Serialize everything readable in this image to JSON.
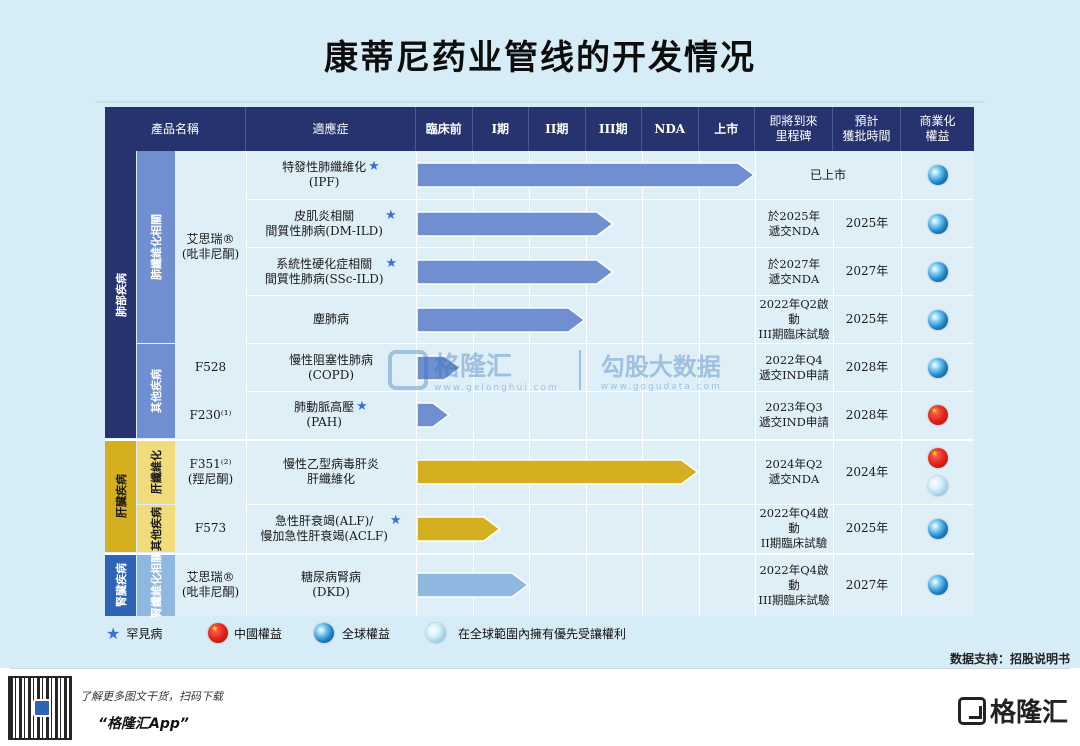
{
  "title": "康蒂尼药业管线的开发情况",
  "headers": {
    "product": "產品名稱",
    "indication": "適應症",
    "stages": [
      "臨床前",
      "I期",
      "II期",
      "III期",
      "NDA",
      "上市"
    ],
    "milestone": "即將到來\n里程碑",
    "approval": "預計\n獲批時間",
    "rights": "商業化\n權益"
  },
  "groups": {
    "lung": "肺部疾病",
    "lung_fibrosis": "肺纖維化相關",
    "lung_other": "其他疾病",
    "liver": "肝臟疾病",
    "liver_fibrosis": "肝纖維化",
    "liver_other": "其他疾病",
    "kidney": "腎臟疾病",
    "kidney_fibrosis": "腎纖維化相關"
  },
  "products": {
    "p1": "艾思瑞®\n(吡非尼酮)",
    "p2": "F528",
    "p3": "F230⁽¹⁾",
    "p4": "F351⁽²⁾\n(羥尼酮)",
    "p5": "F573",
    "p6": "艾思瑞®\n(吡非尼酮)"
  },
  "chart_data": {
    "type": "table",
    "stages": [
      "臨床前",
      "I期",
      "II期",
      "III期",
      "NDA",
      "上市"
    ],
    "rows": [
      {
        "indication": "特發性肺纖維化\n(IPF)",
        "rare": true,
        "progress": 6.0,
        "color": "#6f8fd0",
        "milestone": "已上市",
        "approval": "",
        "rights": [
          "global"
        ]
      },
      {
        "indication": "皮肌炎相關\n間質性肺病(DM-ILD)",
        "rare": true,
        "progress": 3.5,
        "color": "#6f8fd0",
        "milestone": "於2025年\n遞交NDA",
        "approval": "2025年",
        "rights": [
          "global"
        ]
      },
      {
        "indication": "系統性硬化症相關\n間質性肺病(SSc-ILD)",
        "rare": true,
        "progress": 3.5,
        "color": "#6f8fd0",
        "milestone": "於2027年\n遞交NDA",
        "approval": "2027年",
        "rights": [
          "global"
        ]
      },
      {
        "indication": "塵肺病",
        "rare": false,
        "progress": 3.0,
        "color": "#6f8fd0",
        "milestone": "2022年Q2啟動\nIII期臨床試驗",
        "approval": "2025年",
        "rights": [
          "global"
        ]
      },
      {
        "indication": "慢性阻塞性肺病\n(COPD)",
        "rare": false,
        "progress": 0.8,
        "color": "#6f8fd0",
        "milestone": "2022年Q4\n遞交IND申請",
        "approval": "2028年",
        "rights": [
          "global"
        ]
      },
      {
        "indication": "肺動脈高壓\n(PAH)",
        "rare": true,
        "progress": 0.6,
        "color": "#6f8fd0",
        "milestone": "2023年Q3\n遞交IND申請",
        "approval": "2028年",
        "rights": [
          "china"
        ]
      },
      {
        "indication": "慢性乙型病毒肝炎\n肝纖維化",
        "rare": false,
        "progress": 5.0,
        "color": "#d4b020",
        "milestone": "2024年Q2\n遞交NDA",
        "approval": "2024年",
        "rights": [
          "china",
          "priority"
        ]
      },
      {
        "indication": "急性肝衰竭(ALF)/\n慢加急性肝衰竭(ACLF)",
        "rare": true,
        "progress": 1.5,
        "color": "#d4b020",
        "milestone": "2022年Q4啟動\nII期臨床試驗",
        "approval": "2025年",
        "rights": [
          "global"
        ]
      },
      {
        "indication": "糖尿病腎病\n(DKD)",
        "rare": false,
        "progress": 2.0,
        "color": "#8fb8e0",
        "milestone": "2022年Q4啟動\nIII期臨床試驗",
        "approval": "2027年",
        "rights": [
          "global"
        ]
      }
    ]
  },
  "legend": {
    "rare": "罕見病",
    "china": "中國權益",
    "global": "全球權益",
    "priority": "在全球範圍內擁有優先受讓權利"
  },
  "watermark": {
    "brand": "格隆汇",
    "brand_url": "www.gelonghui.com",
    "data": "勾股大数据",
    "data_url": "www.gogudata.com"
  },
  "source_note": "数据支持：招股说明书",
  "promo": {
    "line1": "了解更多图文干货，扫码下载",
    "line2": "“格隆汇App”"
  },
  "brand_logo": "格隆汇",
  "colors": {
    "header_bg": "#26336e",
    "lung_dark": "#26336e",
    "lung_light": "#6f8fd0",
    "liver_dark": "#d4b020",
    "kidney_dark": "#2e63b6",
    "kidney_light": "#8fb8e0"
  }
}
